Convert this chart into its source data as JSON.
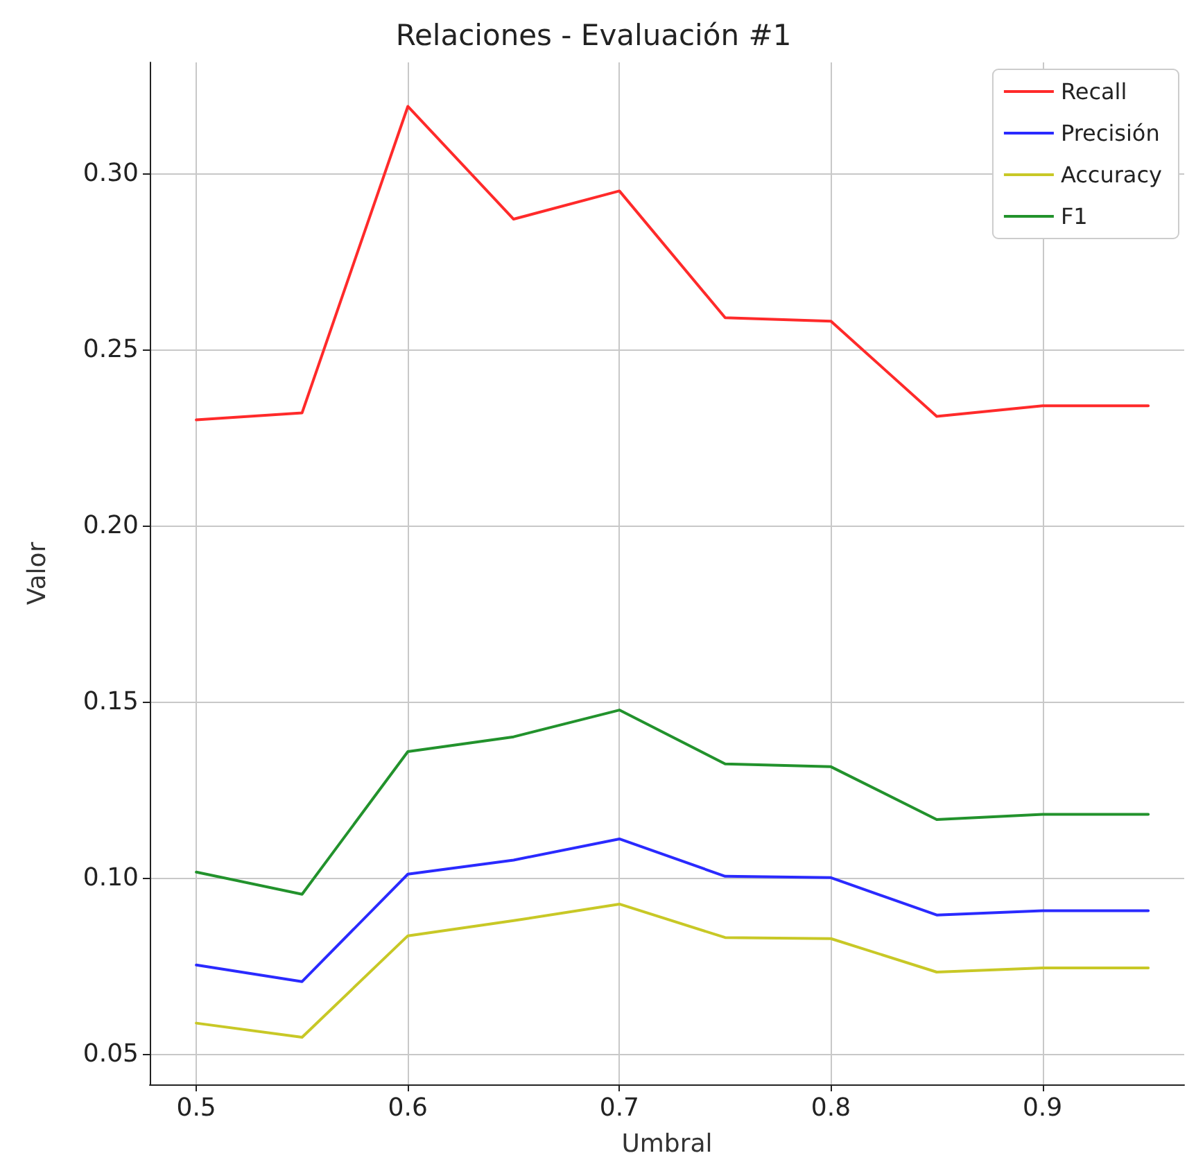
{
  "chart_data": {
    "type": "line",
    "title": "Relaciones - Evaluación #1",
    "xlabel": "Umbral",
    "ylabel": "Valor",
    "x": [
      0.5,
      0.55,
      0.6,
      0.65,
      0.7,
      0.75,
      0.8,
      0.85,
      0.9,
      0.95
    ],
    "series": [
      {
        "name": "Recall",
        "color": "#ff2a2a",
        "values": [
          0.23,
          0.232,
          0.319,
          0.287,
          0.295,
          0.259,
          0.258,
          0.231,
          0.234,
          0.234
        ]
      },
      {
        "name": "Precisión",
        "color": "#2a2aff",
        "values": [
          0.0752,
          0.0705,
          0.101,
          0.105,
          0.111,
          0.1004,
          0.1,
          0.0894,
          0.0906,
          0.0906
        ]
      },
      {
        "name": "Accuracy",
        "color": "#c8c826",
        "values": [
          0.0587,
          0.0547,
          0.0835,
          0.0878,
          0.0925,
          0.083,
          0.0827,
          0.0732,
          0.0744,
          0.0744
        ]
      },
      {
        "name": "F1",
        "color": "#22922c",
        "values": [
          0.1016,
          0.0953,
          0.1358,
          0.14,
          0.1476,
          0.1323,
          0.1315,
          0.1165,
          0.118,
          0.118
        ]
      }
    ],
    "xlim": [
      0.478,
      0.967
    ],
    "xticks": [
      0.5,
      0.6,
      0.7,
      0.8,
      0.9
    ],
    "ylim": [
      0.0413,
      0.3315
    ],
    "yticks": [
      {
        "value": 0.05,
        "label": "0.05"
      },
      {
        "value": 0.1,
        "label": "0.10"
      },
      {
        "value": 0.15,
        "label": "0.15"
      },
      {
        "value": 0.2,
        "label": "0.20"
      },
      {
        "value": 0.25,
        "label": "0.25"
      },
      {
        "value": 0.3,
        "label": "0.30"
      }
    ],
    "grid": true,
    "legend": "top right",
    "marker": "none",
    "line_style": "solid"
  }
}
